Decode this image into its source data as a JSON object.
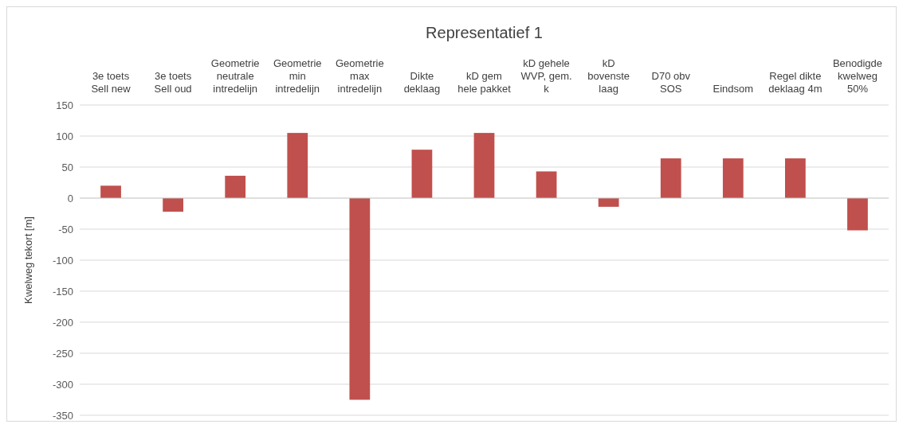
{
  "chart_data": {
    "type": "bar",
    "title": "Representatief 1",
    "ylabel": "Kwelweg tekort [m]",
    "categories": [
      "3e toets Sell new",
      "3e toets Sell oud",
      "Geometrie neutrale intredelijn",
      "Geometrie min intredelijn",
      "Geometrie max intredelijn",
      "Dikte deklaag",
      "kD gem hele pakket",
      "kD gehele WVP, gem. k",
      "kD bovenste laag",
      "D70 obv SOS",
      "Eindsom",
      "Regel dikte deklaag 4m",
      "Benodigde kwelweg 50%"
    ],
    "values": [
      20,
      -22,
      36,
      105,
      -325,
      78,
      105,
      43,
      -14,
      64,
      64,
      64,
      -52
    ],
    "color": "#c0504d",
    "ylim": [
      -350,
      150
    ],
    "yticks": [
      -350,
      -300,
      -250,
      -200,
      -150,
      -100,
      -50,
      0,
      50,
      100,
      150
    ],
    "grid": "y"
  }
}
